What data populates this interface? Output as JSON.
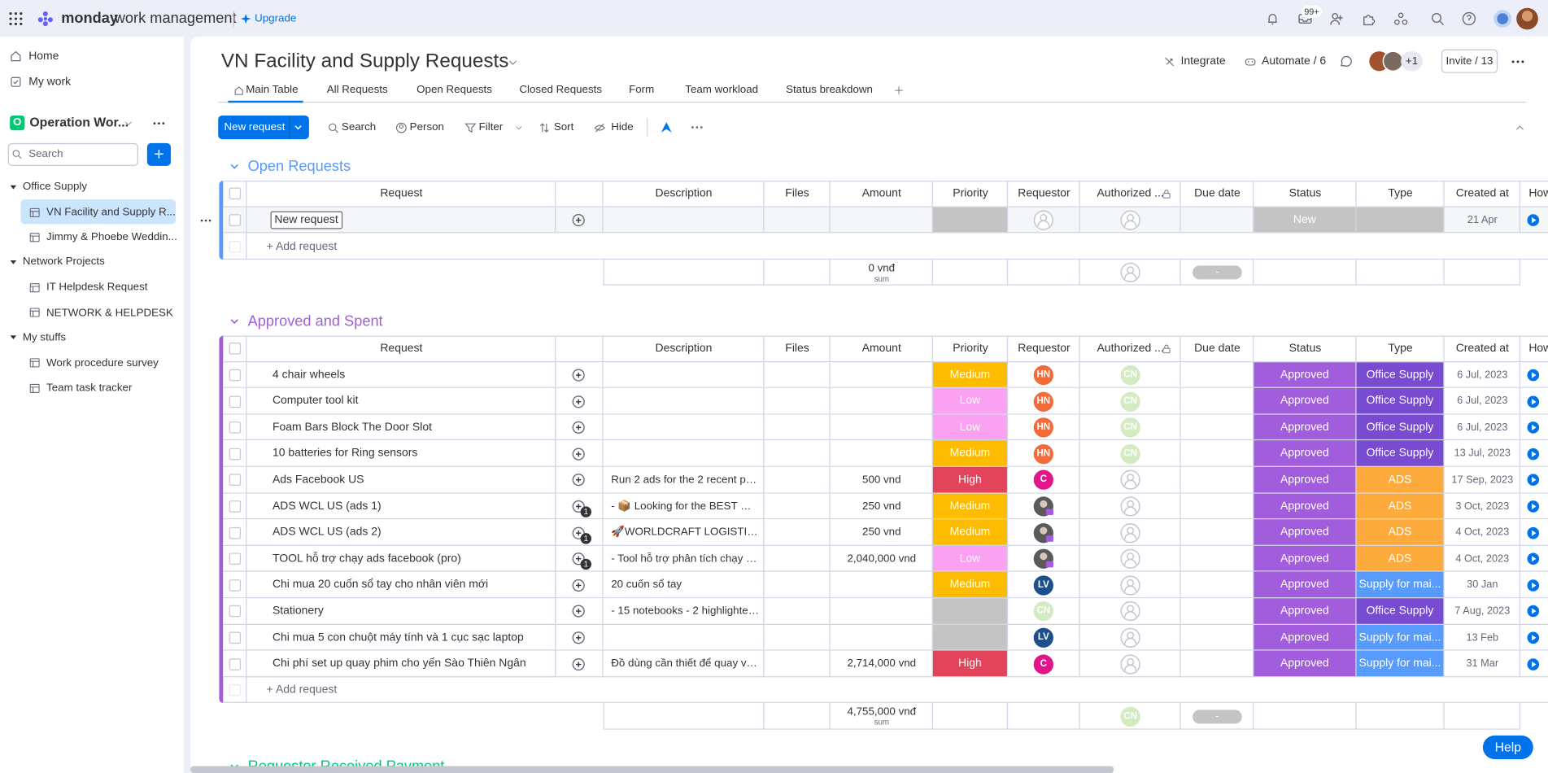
{
  "topbar": {
    "brand": "monday",
    "product": "work management",
    "upgrade": "Upgrade",
    "badge": "99+"
  },
  "sidebar": {
    "nav": [
      "Home",
      "My work"
    ],
    "workspace_initial": "O",
    "workspace": "Operation Wor...",
    "search": "Search",
    "folders": [
      {
        "name": "Office Supply",
        "items": [
          "VN Facility and Supply R...",
          "Jimmy & Phoebe Weddin..."
        ]
      },
      {
        "name": "Network Projects",
        "items": [
          "IT Helpdesk Request",
          "NETWORK & HELPDESK"
        ]
      },
      {
        "name": "My stuffs",
        "items": [
          "Work procedure survey",
          "Team task tracker"
        ]
      }
    ]
  },
  "board": {
    "title": "VN Facility and Supply Requests",
    "actions": [
      "Integrate",
      "Automate / 6"
    ],
    "members_extra": "+1",
    "invite": "Invite / 13",
    "tabs": [
      "Main Table",
      "All Requests",
      "Open Requests",
      "Closed Requests",
      "Form",
      "Team workload",
      "Status breakdown"
    ],
    "new_button": "New request",
    "tools": [
      "Search",
      "Person",
      "Filter",
      "Sort",
      "Hide"
    ],
    "help": "Help"
  },
  "columns": [
    "Request",
    "Description",
    "Files",
    "Amount",
    "Priority",
    "Requestor",
    "Authorized ...",
    "Due date",
    "Status",
    "Type",
    "Created at",
    "How"
  ],
  "colors": {
    "Medium": "#fdbc00",
    "Low": "#faa1f1",
    "High": "#e2445c",
    "Approved": "#a25ddc",
    "New": "#c4c4c4",
    "Office Supply": "#784bd1",
    "ADS": "#fdab3d",
    "Supply for mai...": "#579bfc",
    "HN": "#f26b3a",
    "C": "#e0168a",
    "LV": "#1c4f8c",
    "CN": "#d3ebc0"
  },
  "groups": [
    {
      "title": "Open Requests",
      "color": "#579bfc",
      "add": "+ Add request",
      "rows": [
        {
          "request": "New request",
          "status": "New",
          "created": "21 Apr"
        }
      ],
      "summary": {
        "amount": "0 vnđ",
        "label": "sum",
        "due": "-"
      }
    },
    {
      "title": "Approved and Spent",
      "color": "#a25ddc",
      "add": "+ Add request",
      "rows": [
        {
          "request": "4 chair wheels",
          "priority": "Medium",
          "requestor": "HN",
          "authorized": "CN",
          "status": "Approved",
          "type": "Office Supply",
          "created": "6 Jul, 2023"
        },
        {
          "request": "Computer tool kit",
          "priority": "Low",
          "requestor": "HN",
          "authorized": "CN",
          "status": "Approved",
          "type": "Office Supply",
          "created": "6 Jul, 2023"
        },
        {
          "request": "Foam Bars Block The Door Slot",
          "priority": "Low",
          "requestor": "HN",
          "authorized": "CN",
          "status": "Approved",
          "type": "Office Supply",
          "created": "6 Jul, 2023"
        },
        {
          "request": "10 batteries for Ring sensors",
          "priority": "Medium",
          "requestor": "HN",
          "authorized": "CN",
          "status": "Approved",
          "type": "Office Supply",
          "created": "13 Jul, 2023"
        },
        {
          "request": "Ads Facebook US",
          "description": "Run 2 ads for the 2 recent posts ...",
          "amount": "500 vnd",
          "priority": "High",
          "requestor": "C",
          "status": "Approved",
          "type": "ADS",
          "created": "17 Sep, 2023"
        },
        {
          "request": "ADS WCL US (ads 1)",
          "description": "- 📦 Looking for the BEST Ware...",
          "amount": "250 vnd",
          "priority": "Medium",
          "requestor": null,
          "status": "Approved",
          "type": "ADS",
          "created": "3 Oct, 2023",
          "updates": 1
        },
        {
          "request": "ADS WCL US (ads 2)",
          "description": "🚀WORLDCRAFT LOGISTICS S...",
          "amount": "250 vnd",
          "priority": "Medium",
          "requestor": null,
          "status": "Approved",
          "type": "ADS",
          "created": "4 Oct, 2023",
          "updates": 1
        },
        {
          "request": "TOOL hỗ trợ chạy ads facebook (pro)",
          "description": "- Tool hỗ trợ phân tích chạy ads ...",
          "amount": "2,040,000 vnd",
          "priority": "Low",
          "requestor": null,
          "status": "Approved",
          "type": "ADS",
          "created": "4 Oct, 2023",
          "updates": 1
        },
        {
          "request": "Chi mua 20 cuốn sổ tay cho nhân viên mới",
          "description": "20 cuốn sổ tay",
          "priority": "Medium",
          "requestor": "LV",
          "status": "Approved",
          "type": "Supply for mai...",
          "created": "30 Jan"
        },
        {
          "request": "Stationery",
          "description": "- 15 notebooks - 2 highlighter pe...",
          "requestor": "CN",
          "status": "Approved",
          "type": "Office Supply",
          "created": "7 Aug, 2023"
        },
        {
          "request": "Chi mua 5 con chuột máy tính và 1 cục sạc laptop",
          "requestor": "LV",
          "status": "Approved",
          "type": "Supply for mai...",
          "created": "13 Feb"
        },
        {
          "request": "Chi phí set up quay phim cho yến Sào Thiên Ngân",
          "description": "Đồ dùng cần thiết để quay video...",
          "amount": "2,714,000 vnd",
          "priority": "High",
          "requestor": "C",
          "status": "Approved",
          "type": "Supply for mai...",
          "created": "31 Mar"
        }
      ],
      "summary": {
        "amount": "4,755,000 vnđ",
        "label": "sum",
        "authorized": "CN",
        "due": "-"
      }
    },
    {
      "title": "Requestor Received Payment",
      "color": "#00c875"
    }
  ]
}
